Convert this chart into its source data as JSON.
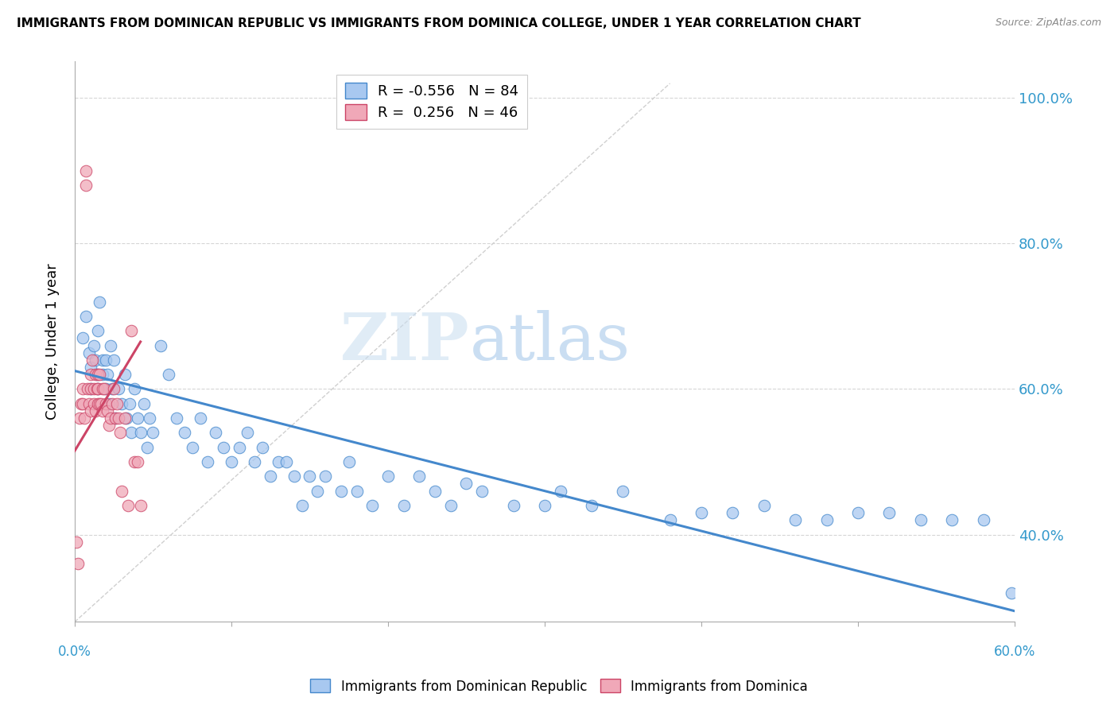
{
  "title": "IMMIGRANTS FROM DOMINICAN REPUBLIC VS IMMIGRANTS FROM DOMINICA COLLEGE, UNDER 1 YEAR CORRELATION CHART",
  "source": "Source: ZipAtlas.com",
  "ylabel": "College, Under 1 year",
  "xlim": [
    0.0,
    0.6
  ],
  "ylim": [
    0.28,
    1.05
  ],
  "yticks": [
    0.4,
    0.6,
    0.8,
    1.0
  ],
  "ytick_labels": [
    "40.0%",
    "60.0%",
    "80.0%",
    "100.0%"
  ],
  "legend_blue_R": "-0.556",
  "legend_blue_N": "84",
  "legend_pink_R": "0.256",
  "legend_pink_N": "46",
  "blue_color": "#a8c8f0",
  "pink_color": "#f0a8b8",
  "blue_line_color": "#4488cc",
  "pink_line_color": "#cc4466",
  "ref_line_color": "#d0d0d0",
  "watermark_zip": "ZIP",
  "watermark_atlas": "atlas",
  "blue_scatter_x": [
    0.005,
    0.007,
    0.009,
    0.01,
    0.01,
    0.012,
    0.013,
    0.014,
    0.015,
    0.015,
    0.016,
    0.018,
    0.018,
    0.02,
    0.02,
    0.021,
    0.022,
    0.023,
    0.024,
    0.025,
    0.026,
    0.028,
    0.03,
    0.032,
    0.033,
    0.035,
    0.036,
    0.038,
    0.04,
    0.042,
    0.044,
    0.046,
    0.048,
    0.05,
    0.055,
    0.06,
    0.065,
    0.07,
    0.075,
    0.08,
    0.085,
    0.09,
    0.095,
    0.1,
    0.105,
    0.11,
    0.115,
    0.12,
    0.125,
    0.13,
    0.135,
    0.14,
    0.145,
    0.15,
    0.155,
    0.16,
    0.17,
    0.175,
    0.18,
    0.19,
    0.2,
    0.21,
    0.22,
    0.23,
    0.24,
    0.25,
    0.26,
    0.28,
    0.3,
    0.31,
    0.33,
    0.35,
    0.38,
    0.4,
    0.42,
    0.44,
    0.46,
    0.48,
    0.5,
    0.52,
    0.54,
    0.56,
    0.58,
    0.598
  ],
  "blue_scatter_y": [
    0.67,
    0.7,
    0.65,
    0.63,
    0.6,
    0.66,
    0.64,
    0.62,
    0.68,
    0.6,
    0.72,
    0.64,
    0.62,
    0.64,
    0.6,
    0.62,
    0.58,
    0.66,
    0.6,
    0.64,
    0.56,
    0.6,
    0.58,
    0.62,
    0.56,
    0.58,
    0.54,
    0.6,
    0.56,
    0.54,
    0.58,
    0.52,
    0.56,
    0.54,
    0.66,
    0.62,
    0.56,
    0.54,
    0.52,
    0.56,
    0.5,
    0.54,
    0.52,
    0.5,
    0.52,
    0.54,
    0.5,
    0.52,
    0.48,
    0.5,
    0.5,
    0.48,
    0.44,
    0.48,
    0.46,
    0.48,
    0.46,
    0.5,
    0.46,
    0.44,
    0.48,
    0.44,
    0.48,
    0.46,
    0.44,
    0.47,
    0.46,
    0.44,
    0.44,
    0.46,
    0.44,
    0.46,
    0.42,
    0.43,
    0.43,
    0.44,
    0.42,
    0.42,
    0.43,
    0.43,
    0.42,
    0.42,
    0.42,
    0.32
  ],
  "pink_scatter_x": [
    0.001,
    0.002,
    0.003,
    0.004,
    0.005,
    0.005,
    0.006,
    0.007,
    0.007,
    0.008,
    0.009,
    0.01,
    0.01,
    0.01,
    0.011,
    0.012,
    0.012,
    0.013,
    0.013,
    0.014,
    0.015,
    0.015,
    0.015,
    0.016,
    0.016,
    0.017,
    0.018,
    0.018,
    0.019,
    0.02,
    0.021,
    0.022,
    0.023,
    0.024,
    0.025,
    0.026,
    0.027,
    0.028,
    0.029,
    0.03,
    0.032,
    0.034,
    0.036,
    0.038,
    0.04,
    0.042
  ],
  "pink_scatter_y": [
    0.39,
    0.36,
    0.56,
    0.58,
    0.6,
    0.58,
    0.56,
    0.88,
    0.9,
    0.6,
    0.58,
    0.62,
    0.6,
    0.57,
    0.64,
    0.6,
    0.58,
    0.62,
    0.57,
    0.6,
    0.62,
    0.6,
    0.58,
    0.62,
    0.58,
    0.58,
    0.6,
    0.57,
    0.6,
    0.58,
    0.57,
    0.55,
    0.56,
    0.58,
    0.6,
    0.56,
    0.58,
    0.56,
    0.54,
    0.46,
    0.56,
    0.44,
    0.68,
    0.5,
    0.5,
    0.44
  ],
  "blue_trend_x": [
    0.0,
    0.6
  ],
  "blue_trend_y": [
    0.625,
    0.295
  ],
  "pink_trend_x": [
    0.0,
    0.042
  ],
  "pink_trend_y": [
    0.515,
    0.665
  ],
  "ref_line_x": [
    0.0,
    0.38
  ],
  "ref_line_y": [
    0.28,
    1.02
  ]
}
